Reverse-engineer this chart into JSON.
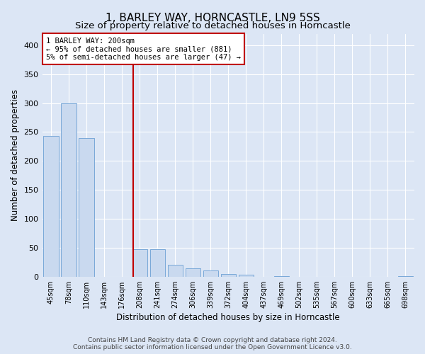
{
  "title": "1, BARLEY WAY, HORNCASTLE, LN9 5SS",
  "subtitle": "Size of property relative to detached houses in Horncastle",
  "xlabel": "Distribution of detached houses by size in Horncastle",
  "ylabel": "Number of detached properties",
  "categories": [
    "45sqm",
    "78sqm",
    "110sqm",
    "143sqm",
    "176sqm",
    "208sqm",
    "241sqm",
    "274sqm",
    "306sqm",
    "339sqm",
    "372sqm",
    "404sqm",
    "437sqm",
    "469sqm",
    "502sqm",
    "535sqm",
    "567sqm",
    "600sqm",
    "633sqm",
    "665sqm",
    "698sqm"
  ],
  "values": [
    243,
    300,
    240,
    0,
    0,
    47,
    47,
    20,
    14,
    11,
    5,
    3,
    0,
    1,
    0,
    0,
    0,
    0,
    0,
    0,
    1
  ],
  "bar_color": "#c9d9ef",
  "bar_edge_color": "#6b9fd4",
  "vline_x": 4.62,
  "vline_color": "#c00000",
  "annotation_lines": [
    "1 BARLEY WAY: 200sqm",
    "← 95% of detached houses are smaller (881)",
    "5% of semi-detached houses are larger (47) →"
  ],
  "bg_color": "#dce6f5",
  "plot_bg_color": "#dce6f5",
  "ylim": [
    0,
    420
  ],
  "yticks": [
    0,
    50,
    100,
    150,
    200,
    250,
    300,
    350,
    400
  ],
  "footer": "Contains HM Land Registry data © Crown copyright and database right 2024.\nContains public sector information licensed under the Open Government Licence v3.0.",
  "title_fontsize": 11,
  "subtitle_fontsize": 9.5,
  "xlabel_fontsize": 8.5,
  "ylabel_fontsize": 8.5,
  "footer_fontsize": 6.5
}
